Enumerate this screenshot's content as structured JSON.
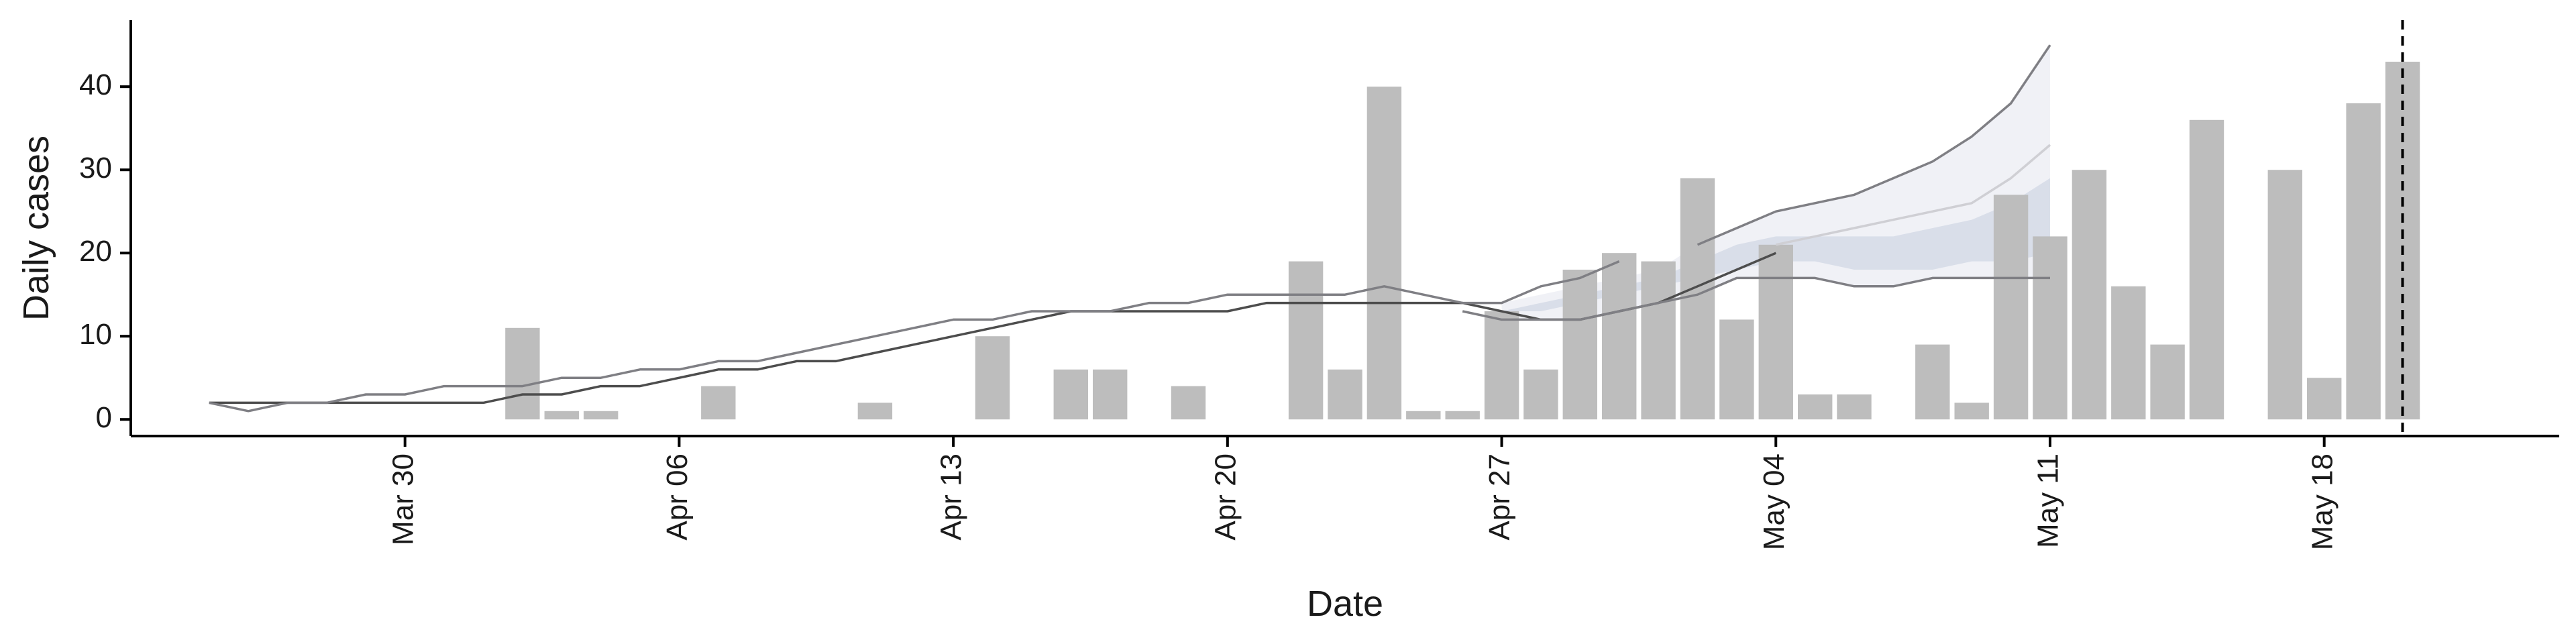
{
  "chart_data": {
    "type": "bar",
    "xlabel": "Date",
    "ylabel": "Daily cases",
    "x_type": "date",
    "xlim": [
      "2020-03-23",
      "2020-05-24"
    ],
    "ylim": [
      -2,
      48
    ],
    "x_ticks": [
      "2020-03-30",
      "2020-04-06",
      "2020-04-13",
      "2020-04-20",
      "2020-04-27",
      "2020-05-04",
      "2020-05-11",
      "2020-05-18"
    ],
    "x_tick_labels": [
      "Mar 30",
      "Apr 06",
      "Apr 13",
      "Apr 20",
      "Apr 27",
      "May 04",
      "May 11",
      "May 18"
    ],
    "y_ticks": [
      0,
      10,
      20,
      30,
      40
    ],
    "grid": false,
    "legend": "none",
    "vline": {
      "x": "2020-05-20",
      "style": "dashed"
    },
    "colors": {
      "bars": "#bdbdbd",
      "line_dark": "#4d4d4d",
      "line_mid": "#7f7f84",
      "line_light": "#cfcfd4",
      "band_outer": "#eef0f5",
      "band_inner": "#d3d9e6",
      "axis": "#000000"
    },
    "bars": {
      "x": [
        "2020-04-02",
        "2020-04-03",
        "2020-04-04",
        "2020-04-07",
        "2020-04-11",
        "2020-04-14",
        "2020-04-16",
        "2020-04-17",
        "2020-04-19",
        "2020-04-22",
        "2020-04-23",
        "2020-04-24",
        "2020-04-25",
        "2020-04-26",
        "2020-04-27",
        "2020-04-28",
        "2020-04-29",
        "2020-04-30",
        "2020-05-01",
        "2020-05-02",
        "2020-05-03",
        "2020-05-04",
        "2020-05-05",
        "2020-05-06",
        "2020-05-08",
        "2020-05-09",
        "2020-05-10",
        "2020-05-11",
        "2020-05-12",
        "2020-05-13",
        "2020-05-14",
        "2020-05-15",
        "2020-05-17",
        "2020-05-18",
        "2020-05-19",
        "2020-05-20"
      ],
      "values": [
        11,
        1,
        1,
        4,
        2,
        10,
        6,
        6,
        4,
        19,
        6,
        40,
        1,
        1,
        13,
        6,
        18,
        20,
        19,
        29,
        12,
        21,
        3,
        3,
        9,
        2,
        27,
        22,
        30,
        16,
        9,
        36,
        30,
        5,
        38,
        43
      ]
    },
    "series": [
      {
        "style": "dark",
        "x": [
          "2020-03-25",
          "2020-03-26",
          "2020-03-27",
          "2020-03-28",
          "2020-03-29",
          "2020-03-30",
          "2020-03-31",
          "2020-04-01",
          "2020-04-02",
          "2020-04-03",
          "2020-04-04",
          "2020-04-05",
          "2020-04-06",
          "2020-04-07",
          "2020-04-08",
          "2020-04-09",
          "2020-04-10",
          "2020-04-11",
          "2020-04-12",
          "2020-04-13",
          "2020-04-14",
          "2020-04-15",
          "2020-04-16",
          "2020-04-17",
          "2020-04-18",
          "2020-04-19",
          "2020-04-20",
          "2020-04-21",
          "2020-04-22",
          "2020-04-23",
          "2020-04-24",
          "2020-04-25",
          "2020-04-26",
          "2020-04-27",
          "2020-04-28",
          "2020-04-29",
          "2020-04-30",
          "2020-05-01",
          "2020-05-02",
          "2020-05-03",
          "2020-05-04"
        ],
        "values": [
          2,
          2,
          2,
          2,
          2,
          2,
          2,
          2,
          3,
          3,
          4,
          4,
          5,
          6,
          6,
          7,
          7,
          8,
          9,
          10,
          11,
          12,
          13,
          13,
          13,
          13,
          13,
          14,
          14,
          14,
          14,
          14,
          14,
          13,
          12,
          12,
          13,
          14,
          16,
          18,
          20
        ]
      },
      {
        "style": "mid",
        "x": [
          "2020-03-25",
          "2020-03-26",
          "2020-03-27",
          "2020-03-28",
          "2020-03-29",
          "2020-03-30",
          "2020-03-31",
          "2020-04-01",
          "2020-04-02",
          "2020-04-03",
          "2020-04-04",
          "2020-04-05",
          "2020-04-06",
          "2020-04-07",
          "2020-04-08",
          "2020-04-09",
          "2020-04-10",
          "2020-04-11",
          "2020-04-12",
          "2020-04-13",
          "2020-04-14",
          "2020-04-15",
          "2020-04-16",
          "2020-04-17",
          "2020-04-18",
          "2020-04-19",
          "2020-04-20",
          "2020-04-21",
          "2020-04-22",
          "2020-04-23",
          "2020-04-24",
          "2020-04-25",
          "2020-04-26",
          "2020-04-27",
          "2020-04-28",
          "2020-04-29",
          "2020-04-30"
        ],
        "values": [
          2,
          1,
          2,
          2,
          3,
          3,
          4,
          4,
          4,
          5,
          5,
          6,
          6,
          7,
          7,
          8,
          9,
          10,
          11,
          12,
          12,
          13,
          13,
          13,
          14,
          14,
          15,
          15,
          15,
          15,
          16,
          15,
          14,
          14,
          16,
          17,
          19
        ]
      },
      {
        "style": "mid",
        "x": [
          "2020-04-26",
          "2020-04-27",
          "2020-04-28",
          "2020-04-29",
          "2020-04-30",
          "2020-05-01",
          "2020-05-02",
          "2020-05-03",
          "2020-05-04",
          "2020-05-05",
          "2020-05-06",
          "2020-05-07",
          "2020-05-08",
          "2020-05-09",
          "2020-05-10",
          "2020-05-11"
        ],
        "values": [
          13,
          12,
          12,
          12,
          13,
          14,
          15,
          17,
          17,
          17,
          16,
          16,
          17,
          17,
          17,
          17
        ]
      },
      {
        "style": "mid",
        "x": [
          "2020-05-02",
          "2020-05-03",
          "2020-05-04",
          "2020-05-05",
          "2020-05-06",
          "2020-05-07",
          "2020-05-08",
          "2020-05-09",
          "2020-05-10",
          "2020-05-11"
        ],
        "values": [
          21,
          23,
          25,
          26,
          27,
          29,
          31,
          34,
          38,
          45
        ]
      },
      {
        "style": "light",
        "x": [
          "2020-05-04",
          "2020-05-05",
          "2020-05-06",
          "2020-05-07",
          "2020-05-08",
          "2020-05-09",
          "2020-05-10",
          "2020-05-11"
        ],
        "values": [
          21,
          22,
          23,
          24,
          25,
          26,
          29,
          33
        ]
      }
    ],
    "bands": [
      {
        "style": "outer",
        "x": [
          "2020-04-27",
          "2020-04-28",
          "2020-04-29",
          "2020-04-30",
          "2020-05-01",
          "2020-05-02",
          "2020-05-03",
          "2020-05-04",
          "2020-05-05",
          "2020-05-06",
          "2020-05-07",
          "2020-05-08",
          "2020-05-09",
          "2020-05-10",
          "2020-05-11"
        ],
        "low": [
          12,
          12,
          12,
          13,
          14,
          15,
          17,
          17,
          17,
          16,
          16,
          17,
          17,
          17,
          17
        ],
        "high": [
          14,
          15,
          16,
          17,
          18,
          21,
          23,
          25,
          26,
          27,
          29,
          31,
          34,
          38,
          45
        ]
      },
      {
        "style": "inner",
        "x": [
          "2020-04-27",
          "2020-04-28",
          "2020-04-29",
          "2020-04-30",
          "2020-05-01",
          "2020-05-02",
          "2020-05-03",
          "2020-05-04",
          "2020-05-05",
          "2020-05-06",
          "2020-05-07",
          "2020-05-08",
          "2020-05-09",
          "2020-05-10",
          "2020-05-11"
        ],
        "low": [
          13,
          13,
          14,
          15,
          16,
          17,
          18,
          19,
          19,
          18,
          18,
          18,
          19,
          19,
          20
        ],
        "high": [
          13,
          14,
          15,
          16,
          17,
          19,
          21,
          22,
          22,
          22,
          22,
          23,
          24,
          26,
          29
        ]
      }
    ]
  }
}
